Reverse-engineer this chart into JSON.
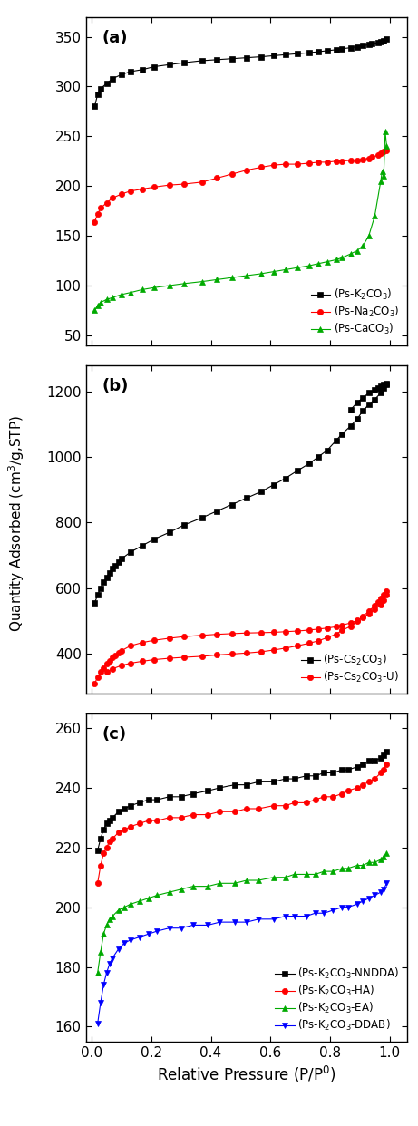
{
  "panel_a": {
    "title": "(a)",
    "ylim": [
      40,
      370
    ],
    "yticks": [
      50,
      100,
      150,
      200,
      250,
      300,
      350
    ],
    "series": [
      {
        "label": "(Ps-K$_2$CO$_3$)",
        "color": "#000000",
        "marker": "s",
        "x": [
          0.01,
          0.02,
          0.03,
          0.05,
          0.07,
          0.1,
          0.13,
          0.17,
          0.21,
          0.26,
          0.31,
          0.37,
          0.42,
          0.47,
          0.52,
          0.57,
          0.61,
          0.65,
          0.69,
          0.73,
          0.76,
          0.79,
          0.82,
          0.84,
          0.87,
          0.89,
          0.91,
          0.93,
          0.94,
          0.96,
          0.97,
          0.98,
          0.99
        ],
        "y": [
          280,
          292,
          298,
          303,
          308,
          312,
          315,
          317,
          320,
          322,
          324,
          326,
          327,
          328,
          329,
          330,
          331,
          332,
          333,
          334,
          335,
          336,
          337,
          338,
          339,
          340,
          341,
          342,
          343,
          344,
          345,
          346,
          348
        ]
      },
      {
        "label": "(Ps-Na$_2$CO$_3$)",
        "color": "#ff0000",
        "marker": "o",
        "x": [
          0.01,
          0.02,
          0.03,
          0.05,
          0.07,
          0.1,
          0.13,
          0.17,
          0.21,
          0.26,
          0.31,
          0.37,
          0.42,
          0.47,
          0.52,
          0.57,
          0.61,
          0.65,
          0.69,
          0.73,
          0.76,
          0.79,
          0.82,
          0.84,
          0.87,
          0.89,
          0.91,
          0.93,
          0.94,
          0.96,
          0.97,
          0.98,
          0.99
        ],
        "y": [
          164,
          172,
          178,
          183,
          188,
          192,
          195,
          197,
          199,
          201,
          202,
          204,
          208,
          212,
          216,
          219,
          221,
          222,
          222,
          223,
          224,
          224,
          225,
          225,
          226,
          226,
          227,
          228,
          229,
          231,
          233,
          235,
          236
        ]
      },
      {
        "label": "(Ps-CaCO$_3$)",
        "color": "#00aa00",
        "marker": "^",
        "x": [
          0.01,
          0.02,
          0.03,
          0.05,
          0.07,
          0.1,
          0.13,
          0.17,
          0.21,
          0.26,
          0.31,
          0.37,
          0.42,
          0.47,
          0.52,
          0.57,
          0.61,
          0.65,
          0.69,
          0.73,
          0.76,
          0.79,
          0.82,
          0.84,
          0.87,
          0.89,
          0.91,
          0.93,
          0.95,
          0.97,
          0.975,
          0.98,
          0.985,
          0.99
        ],
        "y": [
          75,
          80,
          83,
          86,
          88,
          91,
          93,
          96,
          98,
          100,
          102,
          104,
          106,
          108,
          110,
          112,
          114,
          116,
          118,
          120,
          122,
          124,
          126,
          128,
          132,
          135,
          140,
          150,
          170,
          205,
          215,
          210,
          255,
          240
        ]
      }
    ]
  },
  "panel_b": {
    "title": "(b)",
    "ylim": [
      280,
      1280
    ],
    "yticks": [
      400,
      600,
      800,
      1000,
      1200
    ],
    "series": [
      {
        "label": "(Ps-Cs$_2$CO$_3$)",
        "color": "#000000",
        "marker": "s",
        "x_ads": [
          0.01,
          0.02,
          0.03,
          0.04,
          0.05,
          0.06,
          0.07,
          0.08,
          0.09,
          0.1,
          0.13,
          0.17,
          0.21,
          0.26,
          0.31,
          0.37,
          0.42,
          0.47,
          0.52,
          0.57,
          0.61,
          0.65,
          0.69,
          0.73,
          0.76,
          0.79,
          0.82,
          0.84,
          0.87,
          0.89,
          0.91,
          0.93,
          0.95,
          0.97,
          0.98,
          0.99
        ],
        "y_ads": [
          555,
          580,
          600,
          618,
          633,
          647,
          660,
          670,
          680,
          690,
          710,
          730,
          750,
          770,
          793,
          815,
          835,
          855,
          875,
          895,
          915,
          935,
          958,
          980,
          1000,
          1020,
          1050,
          1070,
          1095,
          1115,
          1140,
          1160,
          1175,
          1195,
          1210,
          1220
        ],
        "x_des": [
          0.99,
          0.98,
          0.97,
          0.96,
          0.95,
          0.93,
          0.91,
          0.89,
          0.87
        ],
        "y_des": [
          1225,
          1220,
          1215,
          1210,
          1205,
          1195,
          1180,
          1165,
          1145
        ]
      },
      {
        "label": "(Ps-Cs$_2$CO$_3$-U)",
        "color": "#ff0000",
        "marker": "o",
        "x_ads": [
          0.01,
          0.02,
          0.03,
          0.04,
          0.05,
          0.06,
          0.07,
          0.08,
          0.09,
          0.1,
          0.13,
          0.17,
          0.21,
          0.26,
          0.31,
          0.37,
          0.42,
          0.47,
          0.52,
          0.57,
          0.61,
          0.65,
          0.69,
          0.73,
          0.76,
          0.79,
          0.82,
          0.84,
          0.87,
          0.89,
          0.91,
          0.93,
          0.95,
          0.97,
          0.98,
          0.99
        ],
        "y_ads": [
          310,
          330,
          345,
          358,
          370,
          380,
          389,
          396,
          403,
          410,
          425,
          435,
          442,
          448,
          453,
          457,
          460,
          462,
          464,
          465,
          466,
          468,
          470,
          473,
          476,
          479,
          483,
          488,
          495,
          502,
          512,
          522,
          535,
          550,
          565,
          580
        ],
        "x_des": [
          0.99,
          0.98,
          0.97,
          0.96,
          0.95,
          0.93,
          0.91,
          0.89,
          0.87,
          0.84,
          0.82,
          0.79,
          0.76,
          0.73,
          0.69,
          0.65,
          0.61,
          0.57,
          0.52,
          0.47,
          0.42,
          0.37,
          0.31,
          0.26,
          0.21,
          0.17,
          0.13,
          0.1,
          0.07,
          0.05
        ],
        "y_des": [
          592,
          580,
          570,
          558,
          548,
          530,
          515,
          500,
          485,
          472,
          460,
          450,
          440,
          433,
          425,
          418,
          412,
          407,
          403,
          400,
          397,
          393,
          390,
          387,
          383,
          378,
          372,
          365,
          355,
          345
        ]
      }
    ]
  },
  "panel_c": {
    "title": "(c)",
    "ylim": [
      155,
      265
    ],
    "yticks": [
      160,
      180,
      200,
      220,
      240,
      260
    ],
    "series": [
      {
        "label": "(Ps-K$_2$CO$_3$-NNDDA)",
        "color": "#000000",
        "marker": "s",
        "x": [
          0.02,
          0.03,
          0.04,
          0.05,
          0.06,
          0.07,
          0.09,
          0.11,
          0.13,
          0.16,
          0.19,
          0.22,
          0.26,
          0.3,
          0.34,
          0.39,
          0.43,
          0.48,
          0.52,
          0.56,
          0.61,
          0.65,
          0.68,
          0.72,
          0.75,
          0.78,
          0.81,
          0.84,
          0.86,
          0.89,
          0.91,
          0.93,
          0.95,
          0.97,
          0.98,
          0.99
        ],
        "y": [
          219,
          223,
          226,
          228,
          229,
          230,
          232,
          233,
          234,
          235,
          236,
          236,
          237,
          237,
          238,
          239,
          240,
          241,
          241,
          242,
          242,
          243,
          243,
          244,
          244,
          245,
          245,
          246,
          246,
          247,
          248,
          249,
          249,
          250,
          251,
          252
        ]
      },
      {
        "label": "(Ps-K$_2$CO$_3$-HA)",
        "color": "#ff0000",
        "marker": "o",
        "x": [
          0.02,
          0.03,
          0.04,
          0.05,
          0.06,
          0.07,
          0.09,
          0.11,
          0.13,
          0.16,
          0.19,
          0.22,
          0.26,
          0.3,
          0.34,
          0.39,
          0.43,
          0.48,
          0.52,
          0.56,
          0.61,
          0.65,
          0.68,
          0.72,
          0.75,
          0.78,
          0.81,
          0.84,
          0.86,
          0.89,
          0.91,
          0.93,
          0.95,
          0.97,
          0.98,
          0.99
        ],
        "y": [
          208,
          214,
          218,
          220,
          222,
          223,
          225,
          226,
          227,
          228,
          229,
          229,
          230,
          230,
          231,
          231,
          232,
          232,
          233,
          233,
          234,
          234,
          235,
          235,
          236,
          237,
          237,
          238,
          239,
          240,
          241,
          242,
          243,
          245,
          246,
          248
        ]
      },
      {
        "label": "(Ps-K$_2$CO$_3$-EA)",
        "color": "#00aa00",
        "marker": "^",
        "x": [
          0.02,
          0.03,
          0.04,
          0.05,
          0.06,
          0.07,
          0.09,
          0.11,
          0.13,
          0.16,
          0.19,
          0.22,
          0.26,
          0.3,
          0.34,
          0.39,
          0.43,
          0.48,
          0.52,
          0.56,
          0.61,
          0.65,
          0.68,
          0.72,
          0.75,
          0.78,
          0.81,
          0.84,
          0.86,
          0.89,
          0.91,
          0.93,
          0.95,
          0.97,
          0.98,
          0.99
        ],
        "y": [
          178,
          185,
          191,
          194,
          196,
          197,
          199,
          200,
          201,
          202,
          203,
          204,
          205,
          206,
          207,
          207,
          208,
          208,
          209,
          209,
          210,
          210,
          211,
          211,
          211,
          212,
          212,
          213,
          213,
          214,
          214,
          215,
          215,
          216,
          217,
          218
        ]
      },
      {
        "label": "(Ps-K$_2$CO$_3$-DDAB)",
        "color": "#0000ff",
        "marker": "v",
        "x": [
          0.02,
          0.03,
          0.04,
          0.05,
          0.06,
          0.07,
          0.09,
          0.11,
          0.13,
          0.16,
          0.19,
          0.22,
          0.26,
          0.3,
          0.34,
          0.39,
          0.43,
          0.48,
          0.52,
          0.56,
          0.61,
          0.65,
          0.68,
          0.72,
          0.75,
          0.78,
          0.81,
          0.84,
          0.86,
          0.89,
          0.91,
          0.93,
          0.95,
          0.97,
          0.98,
          0.99
        ],
        "y": [
          161,
          168,
          174,
          178,
          181,
          183,
          186,
          188,
          189,
          190,
          191,
          192,
          193,
          193,
          194,
          194,
          195,
          195,
          195,
          196,
          196,
          197,
          197,
          197,
          198,
          198,
          199,
          200,
          200,
          201,
          202,
          203,
          204,
          205,
          206,
          208
        ]
      }
    ]
  },
  "ylabel": "Quantity Adsorbed (cm$^3$/g,STP)",
  "xlabel": "Relative Pressure (P/P$^0$)",
  "markersize": 4.5,
  "linewidth": 0.8
}
